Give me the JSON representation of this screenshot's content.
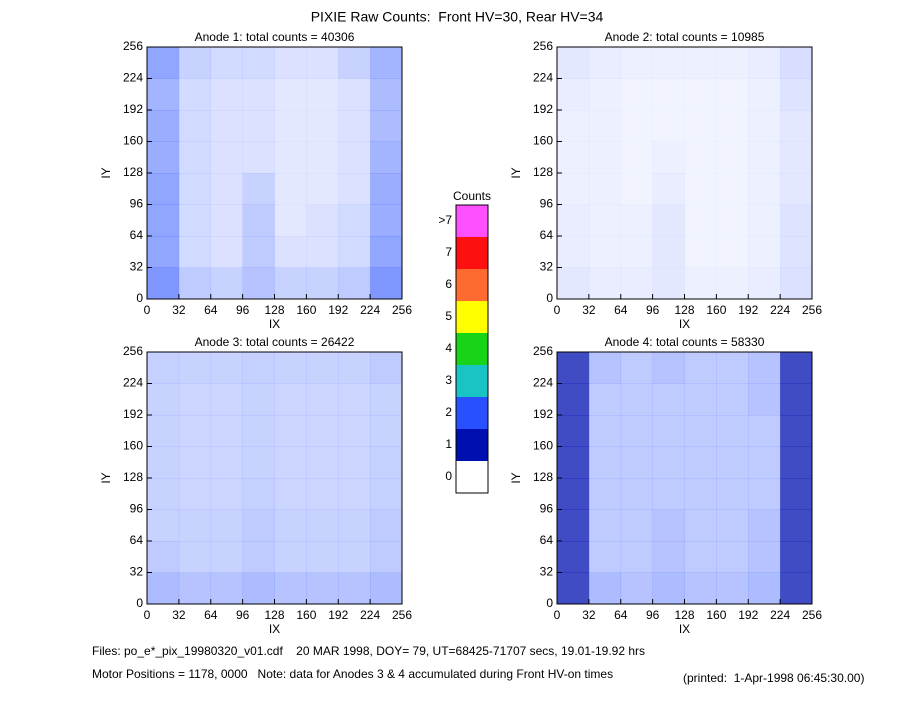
{
  "title": "PIXIE Raw Counts:  Front HV=30, Rear HV=34",
  "colorbar": {
    "title": "Counts",
    "levels": [
      0,
      1,
      2,
      3,
      4,
      5,
      6,
      7,
      {
        "value": 8,
        "label": ">7"
      }
    ],
    "colors": [
      "#ffffff",
      "#0010b0",
      "#2850ff",
      "#18c4c4",
      "#18d418",
      "#ffff00",
      "#ff6a30",
      "#ff1010",
      "#ff50ff"
    ]
  },
  "notes": [
    "Files: po_e*_pix_19980320_v01.cdf    20 MAR 1998, DOY= 79, UT=68425-71707 secs, 19.01-19.92 hrs",
    "Motor Positions = 1178, 0000   Note: data for Anodes 3 & 4 accumulated during Front HV-on times",
    "(printed:  1-Apr-1998 06:45:30.00)"
  ],
  "chart_data": [
    {
      "type": "heatmap",
      "title": "Anode 1: total counts = 40306",
      "xlabel": "IX",
      "ylabel": "IY",
      "xlim": [
        0,
        256
      ],
      "ylim": [
        0,
        256
      ],
      "xticks": [
        0,
        32,
        64,
        96,
        128,
        160,
        192,
        224,
        256
      ],
      "yticks": [
        0,
        32,
        64,
        96,
        128,
        160,
        192,
        224,
        256
      ],
      "values": [
        [
          0.7,
          0.35,
          0.3,
          0.4,
          0.3,
          0.3,
          0.35,
          0.7
        ],
        [
          0.6,
          0.25,
          0.2,
          0.35,
          0.2,
          0.2,
          0.25,
          0.6
        ],
        [
          0.6,
          0.25,
          0.2,
          0.35,
          0.15,
          0.2,
          0.25,
          0.55
        ],
        [
          0.6,
          0.25,
          0.2,
          0.3,
          0.15,
          0.15,
          0.2,
          0.55
        ],
        [
          0.55,
          0.25,
          0.2,
          0.2,
          0.15,
          0.15,
          0.2,
          0.5
        ],
        [
          0.55,
          0.25,
          0.2,
          0.2,
          0.15,
          0.15,
          0.2,
          0.45
        ],
        [
          0.5,
          0.25,
          0.2,
          0.2,
          0.15,
          0.15,
          0.2,
          0.45
        ],
        [
          0.6,
          0.3,
          0.25,
          0.25,
          0.2,
          0.2,
          0.3,
          0.5
        ]
      ]
    },
    {
      "type": "heatmap",
      "title": "Anode 2: total counts = 10985",
      "xlabel": "IX",
      "ylabel": "IY",
      "xlim": [
        0,
        256
      ],
      "ylim": [
        0,
        256
      ],
      "xticks": [
        0,
        32,
        64,
        96,
        128,
        160,
        192,
        224,
        256
      ],
      "yticks": [
        0,
        32,
        64,
        96,
        128,
        160,
        192,
        224,
        256
      ],
      "values": [
        [
          0.15,
          0.12,
          0.12,
          0.15,
          0.1,
          0.1,
          0.12,
          0.2
        ],
        [
          0.12,
          0.1,
          0.1,
          0.15,
          0.08,
          0.08,
          0.1,
          0.18
        ],
        [
          0.12,
          0.1,
          0.1,
          0.15,
          0.08,
          0.08,
          0.1,
          0.18
        ],
        [
          0.1,
          0.1,
          0.08,
          0.12,
          0.08,
          0.08,
          0.1,
          0.15
        ],
        [
          0.1,
          0.1,
          0.08,
          0.1,
          0.08,
          0.08,
          0.1,
          0.15
        ],
        [
          0.1,
          0.1,
          0.08,
          0.08,
          0.08,
          0.08,
          0.1,
          0.15
        ],
        [
          0.12,
          0.1,
          0.08,
          0.08,
          0.08,
          0.08,
          0.1,
          0.18
        ],
        [
          0.15,
          0.12,
          0.1,
          0.1,
          0.1,
          0.1,
          0.12,
          0.22
        ]
      ]
    },
    {
      "type": "heatmap",
      "title": "Anode 3: total counts = 26422",
      "xlabel": "IX",
      "ylabel": "IY",
      "xlim": [
        0,
        256
      ],
      "ylim": [
        0,
        256
      ],
      "xticks": [
        0,
        32,
        64,
        96,
        128,
        160,
        192,
        224,
        256
      ],
      "yticks": [
        0,
        32,
        64,
        96,
        128,
        160,
        192,
        224,
        256
      ],
      "values": [
        [
          0.45,
          0.4,
          0.4,
          0.45,
          0.4,
          0.4,
          0.4,
          0.45
        ],
        [
          0.35,
          0.3,
          0.3,
          0.35,
          0.3,
          0.3,
          0.3,
          0.35
        ],
        [
          0.3,
          0.3,
          0.3,
          0.35,
          0.3,
          0.3,
          0.3,
          0.35
        ],
        [
          0.3,
          0.28,
          0.28,
          0.32,
          0.28,
          0.28,
          0.28,
          0.32
        ],
        [
          0.3,
          0.28,
          0.28,
          0.3,
          0.28,
          0.28,
          0.28,
          0.32
        ],
        [
          0.3,
          0.28,
          0.28,
          0.3,
          0.28,
          0.28,
          0.28,
          0.3
        ],
        [
          0.3,
          0.28,
          0.28,
          0.3,
          0.28,
          0.28,
          0.28,
          0.3
        ],
        [
          0.32,
          0.3,
          0.3,
          0.32,
          0.3,
          0.3,
          0.3,
          0.35
        ]
      ]
    },
    {
      "type": "heatmap",
      "title": "Anode 4: total counts = 58330",
      "xlabel": "IX",
      "ylabel": "IY",
      "xlim": [
        0,
        256
      ],
      "ylim": [
        0,
        256
      ],
      "xticks": [
        0,
        32,
        64,
        96,
        128,
        160,
        192,
        224,
        256
      ],
      "yticks": [
        0,
        32,
        64,
        96,
        128,
        160,
        192,
        224,
        256
      ],
      "values": [
        [
          1.3,
          0.45,
          0.4,
          0.45,
          0.4,
          0.4,
          0.45,
          1.4
        ],
        [
          1.2,
          0.35,
          0.35,
          0.4,
          0.35,
          0.35,
          0.4,
          1.3
        ],
        [
          1.2,
          0.35,
          0.35,
          0.4,
          0.35,
          0.35,
          0.4,
          1.3
        ],
        [
          1.1,
          0.35,
          0.35,
          0.35,
          0.35,
          0.35,
          0.35,
          1.2
        ],
        [
          1.1,
          0.35,
          0.35,
          0.35,
          0.35,
          0.35,
          0.35,
          1.2
        ],
        [
          1.1,
          0.35,
          0.35,
          0.35,
          0.35,
          0.35,
          0.35,
          1.2
        ],
        [
          1.1,
          0.35,
          0.35,
          0.35,
          0.35,
          0.35,
          0.4,
          1.2
        ],
        [
          1.2,
          0.4,
          0.35,
          0.4,
          0.35,
          0.35,
          0.4,
          1.3
        ]
      ]
    }
  ]
}
